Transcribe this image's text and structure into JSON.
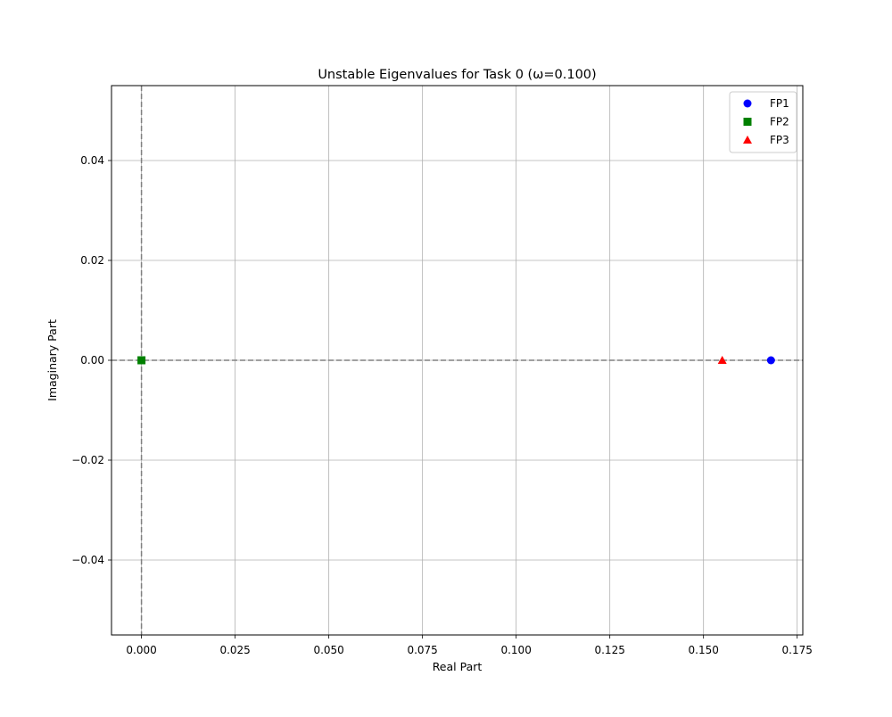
{
  "chart_data": {
    "type": "scatter",
    "title": "Unstable Eigenvalues for Task 0 (ω=0.100)",
    "xlabel": "Real Part",
    "ylabel": "Imaginary Part",
    "xlim": [
      -0.008,
      0.1765
    ],
    "ylim": [
      -0.055,
      0.055
    ],
    "xticks": [
      0.0,
      0.025,
      0.05,
      0.075,
      0.1,
      0.125,
      0.15,
      0.175
    ],
    "xtick_labels": [
      "0.000",
      "0.025",
      "0.050",
      "0.075",
      "0.100",
      "0.125",
      "0.150",
      "0.175"
    ],
    "yticks": [
      -0.04,
      -0.02,
      0.0,
      0.02,
      0.04
    ],
    "ytick_labels": [
      "−0.04",
      "−0.02",
      "0.00",
      "0.02",
      "0.04"
    ],
    "grid": true,
    "reference_lines": {
      "x": 0,
      "y": 0,
      "style": "dashed",
      "color": "#808080"
    },
    "legend_position": "top-right",
    "series": [
      {
        "name": "FP1",
        "marker": "circle",
        "color": "#0000ff",
        "points": [
          {
            "x": 0.168,
            "y": 0.0
          }
        ]
      },
      {
        "name": "FP2",
        "marker": "square",
        "color": "#008000",
        "points": [
          {
            "x": 0.0,
            "y": 0.0
          }
        ]
      },
      {
        "name": "FP3",
        "marker": "triangle",
        "color": "#ff0000",
        "points": [
          {
            "x": 0.155,
            "y": 0.0
          }
        ]
      }
    ]
  }
}
